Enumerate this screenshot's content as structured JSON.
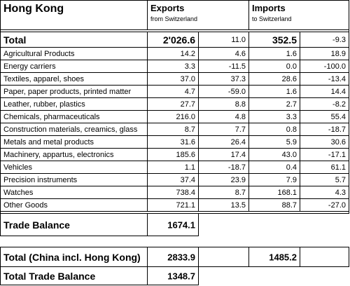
{
  "title": "Hong Kong",
  "exports": {
    "label": "Exports",
    "sub": "from Switzerland"
  },
  "imports": {
    "label": "Imports",
    "sub": "to Switzerland"
  },
  "total": {
    "label": "Total",
    "cells": [
      "2'026.6",
      "11.0",
      "352.5",
      "-9.3"
    ]
  },
  "rows": [
    {
      "label": "Agricultural Products",
      "cells": [
        "14.2",
        "4.6",
        "1.6",
        "18.9"
      ]
    },
    {
      "label": "Energy carriers",
      "cells": [
        "3.3",
        "-11.5",
        "0.0",
        "-100.0"
      ]
    },
    {
      "label": "Textiles, apparel, shoes",
      "cells": [
        "37.0",
        "37.3",
        "28.6",
        "-13.4"
      ]
    },
    {
      "label": "Paper, paper products, printed matter",
      "cells": [
        "4.7",
        "-59.0",
        "1.6",
        "14.4"
      ]
    },
    {
      "label": "Leather, rubber, plastics",
      "cells": [
        "27.7",
        "8.8",
        "2.7",
        "-8.2"
      ]
    },
    {
      "label": "Chemicals, pharmaceuticals",
      "cells": [
        "216.0",
        "4.8",
        "3.3",
        "55.4"
      ]
    },
    {
      "label": "Construction materials, creamics, glass",
      "cells": [
        "8.7",
        "7.7",
        "0.8",
        "-18.7"
      ]
    },
    {
      "label": "Metals and metal products",
      "cells": [
        "31.6",
        "26.4",
        "5.9",
        "30.6"
      ]
    },
    {
      "label": "Machinery, appartus, electronics",
      "cells": [
        "185.6",
        "17.4",
        "43.0",
        "-17.1"
      ]
    },
    {
      "label": "Vehicles",
      "cells": [
        "1.1",
        "-18.7",
        "0.4",
        "61.1"
      ]
    },
    {
      "label": "Precision instruments",
      "cells": [
        "37.4",
        "23.9",
        "7.9",
        "5.7"
      ]
    },
    {
      "label": "Watches",
      "cells": [
        "738.4",
        "8.7",
        "168.1",
        "4.3"
      ]
    },
    {
      "label": "Other Goods",
      "cells": [
        "721.1",
        "13.5",
        "88.7",
        "-27.0"
      ]
    }
  ],
  "trade_balance": {
    "label": "Trade Balance",
    "value": "1674.1"
  },
  "china": {
    "label": "Total (China incl. Hong Kong)",
    "exports": "2833.9",
    "imports": "1485.2"
  },
  "china_balance": {
    "label": "Total Trade Balance",
    "value": "1348.7"
  }
}
